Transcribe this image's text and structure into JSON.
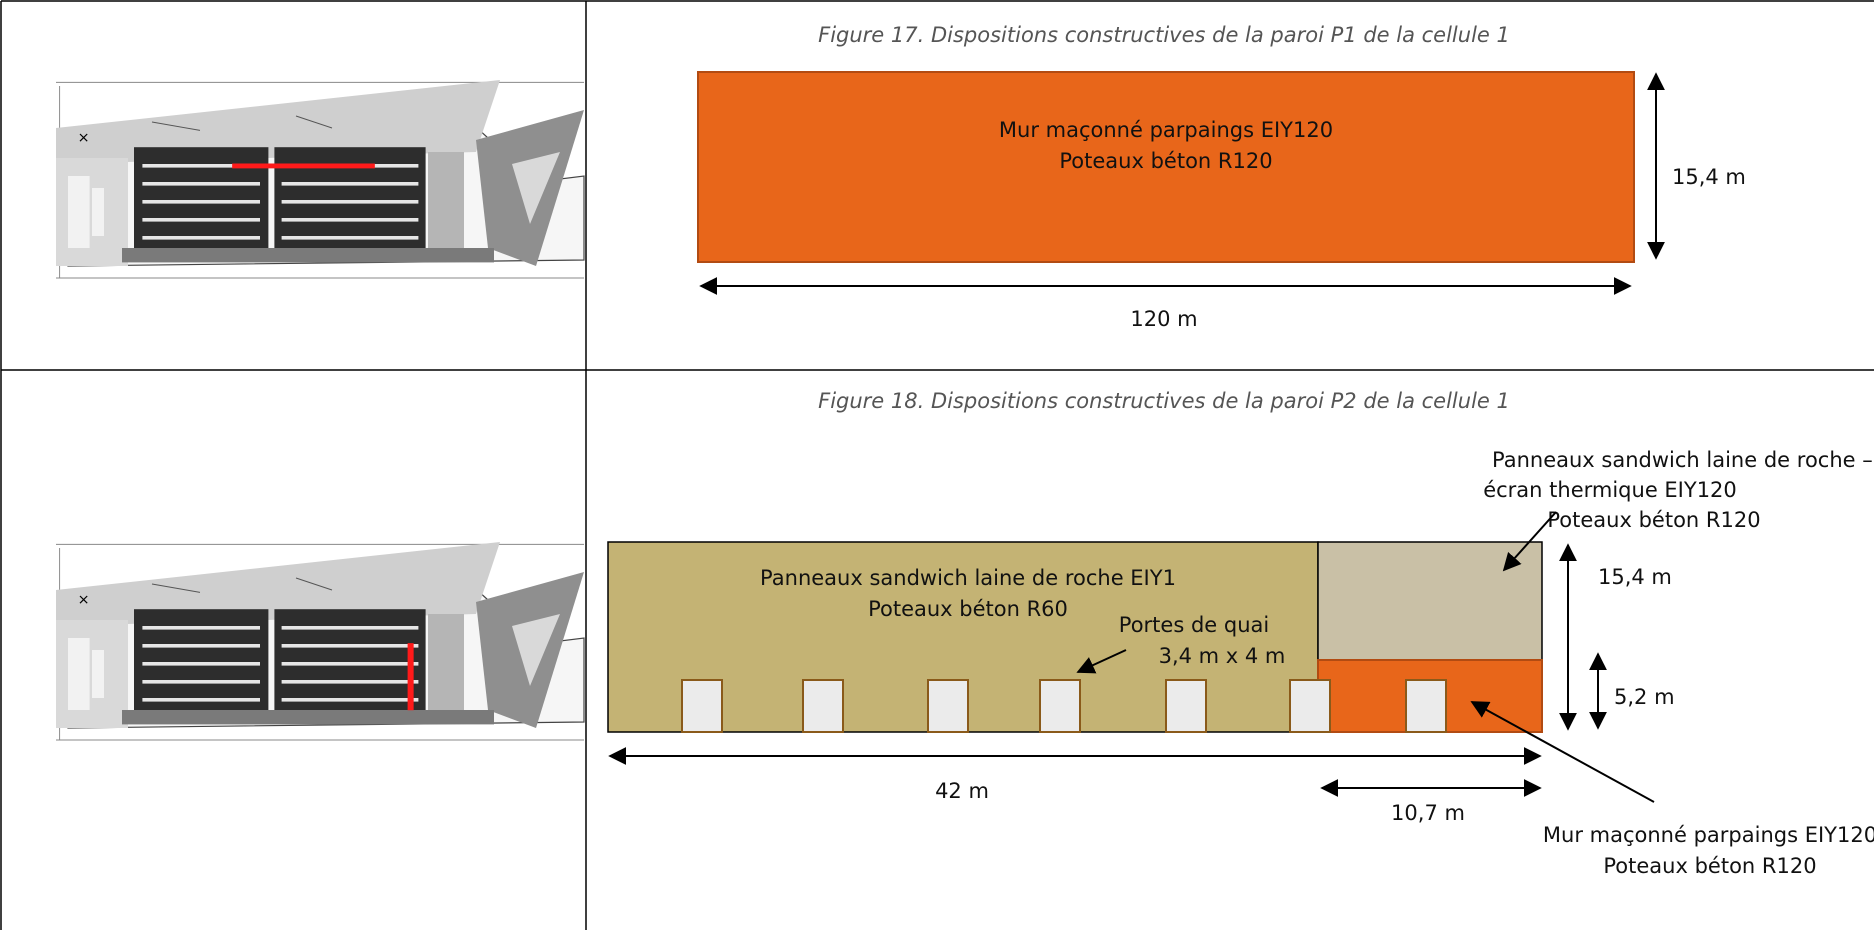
{
  "figures": [
    {
      "caption": "Figure 17. Dispositions constructives de la paroi P1 de la cellule 1",
      "wall_lines": [
        "Mur maçonné parpaings EIY120",
        "Poteaux béton R120"
      ],
      "height": "15,4 m",
      "width": "120 m"
    },
    {
      "caption": "Figure 18. Dispositions constructives de la paroi P2 de la cellule 1",
      "panel_lines": [
        "Panneaux sandwich laine de roche EIY1",
        "Poteaux béton R60"
      ],
      "doors_lines": [
        "Portes de quai",
        "3,4 m x 4 m"
      ],
      "screen_lines": [
        "Panneaux sandwich laine de roche –",
        "écran thermique EIY120",
        "Poteaux béton R120"
      ],
      "masonry_lines": [
        "Mur maçonné parpaings EIY120",
        "Poteaux béton R120"
      ],
      "height_total": "15,4 m",
      "height_masonry": "5,2 m",
      "width_total": "42 m",
      "width_masonry": "10,7 m"
    }
  ],
  "colors": {
    "orange_wall": "#E8661A",
    "sandwich_panel": "#C4B374",
    "thermal_screen": "#C9C0A6",
    "door": "#EBEBEB",
    "highlight": "#FF1A1A"
  }
}
